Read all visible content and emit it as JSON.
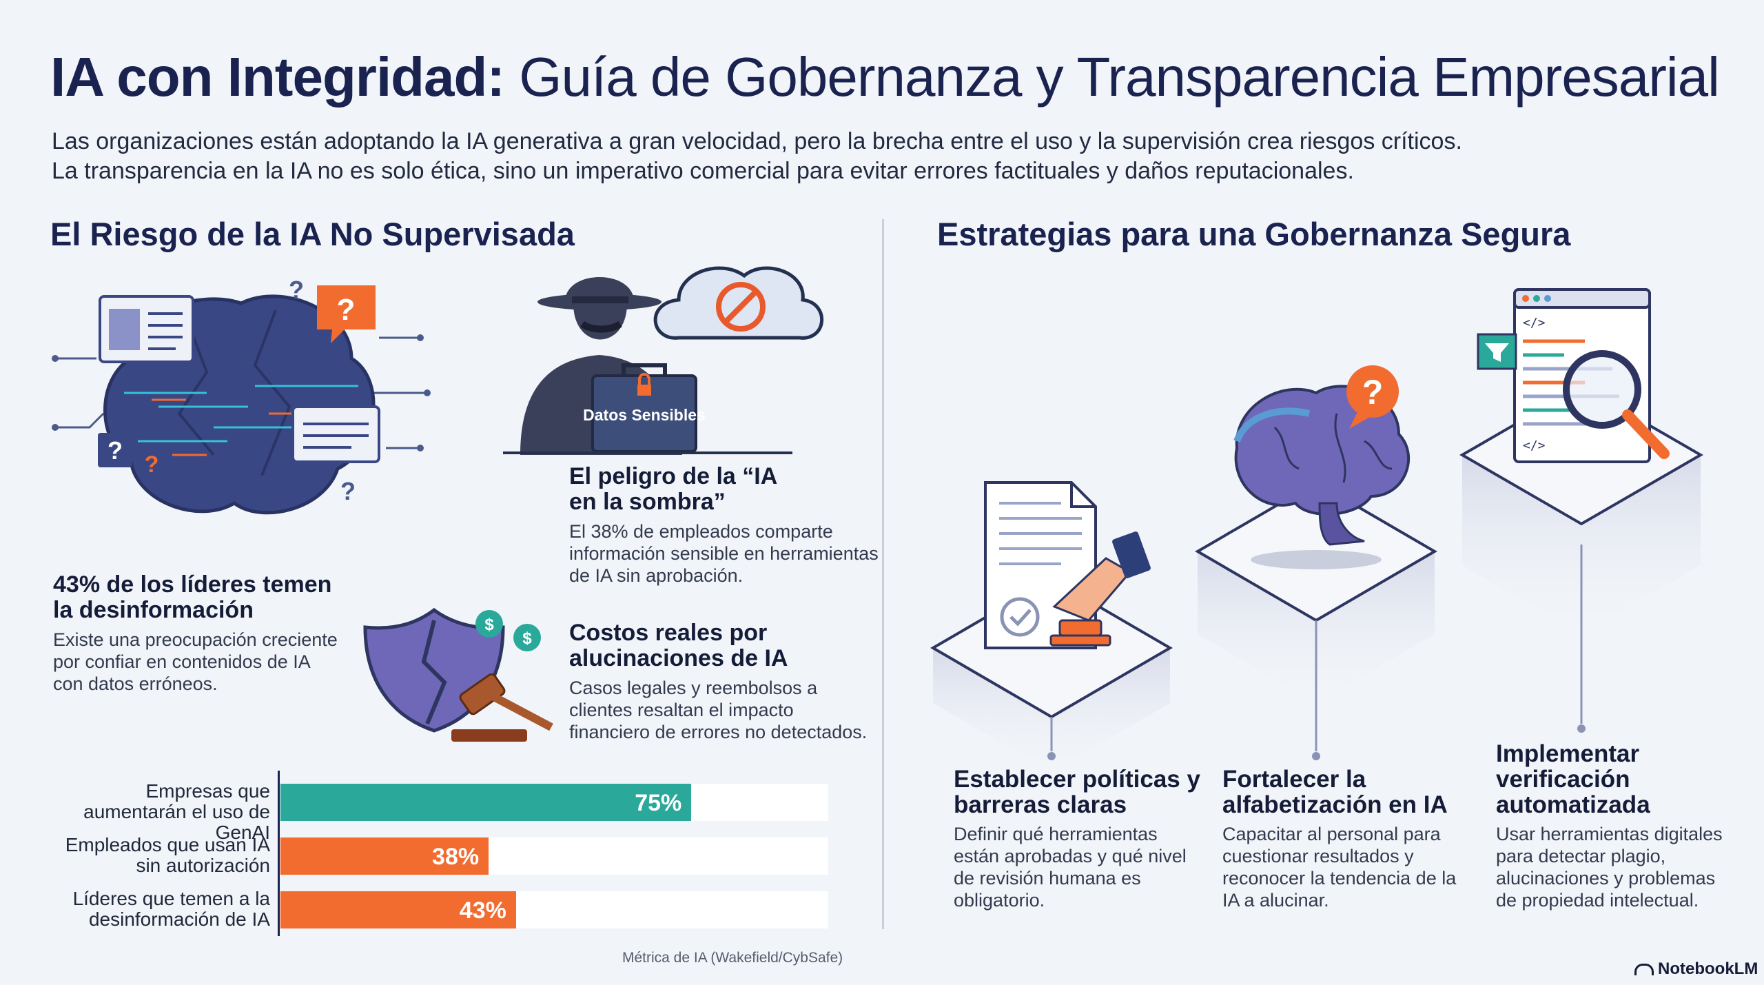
{
  "header": {
    "title_bold": "IA con Integridad:",
    "title_rest": "Guía de Gobernanza y Transparencia Empresarial",
    "intro_line1": "Las organizaciones están adoptando la IA generativa a gran velocidad, pero la brecha entre el uso y la supervisión crea riesgos críticos.",
    "intro_line2": "La transparencia en la IA no es solo ética, sino un imperativo comercial para evitar errores factituales y daños reputacionales."
  },
  "left": {
    "heading": "El Riesgo de la IA No Supervisada",
    "question_mark": "?",
    "briefcase_label": "Datos Sensibles",
    "blocks": [
      {
        "title": "43% de los líderes temen la desinformación",
        "text": "Existe una preocupación creciente por confiar en contenidos de IA con datos erróneos."
      },
      {
        "title": "El peligro de la “IA en la sombra”",
        "text": "El 38% de empleados comparte información sensible en herramientas de IA sin aprobación."
      },
      {
        "title": "Costos reales por alucinaciones de IA",
        "text": "Casos legales y reembolsos a clientes resaltan el impacto financiero de errores no detectados."
      }
    ]
  },
  "chart_data": {
    "type": "bar",
    "orientation": "horizontal",
    "categories": [
      "Empresas que aumentarán el uso de GenAI",
      "Empleados que usan IA sin autorización",
      "Líderes que temen a la desinformación de IA"
    ],
    "values": [
      75,
      38,
      43
    ],
    "value_labels": [
      "75%",
      "38%",
      "43%"
    ],
    "colors": [
      "#2aa89a",
      "#f26b2f",
      "#f26b2f"
    ],
    "xlim": [
      0,
      100
    ],
    "source": "Métrica de IA (Wakefield/CybSafe)"
  },
  "right": {
    "heading": "Estrategias para una Gobernanza Segura",
    "code_tag": "</>",
    "strategies": [
      {
        "title": "Establecer políticas y barreras claras",
        "text": "Definir qué herramientas están aprobadas y qué nivel de revisión humana es obligatorio."
      },
      {
        "title": "Fortalecer la alfabetización en IA",
        "text": "Capacitar al personal para cuestionar resultados y reconocer la tendencia de la IA a alucinar."
      },
      {
        "title": "Implementar verificación automatizada",
        "text": "Usar herramientas digitales para detectar plagio, alucinaciones y problemas de propiedad intelectual."
      }
    ]
  },
  "footer": {
    "logo": "NotebookLM"
  }
}
